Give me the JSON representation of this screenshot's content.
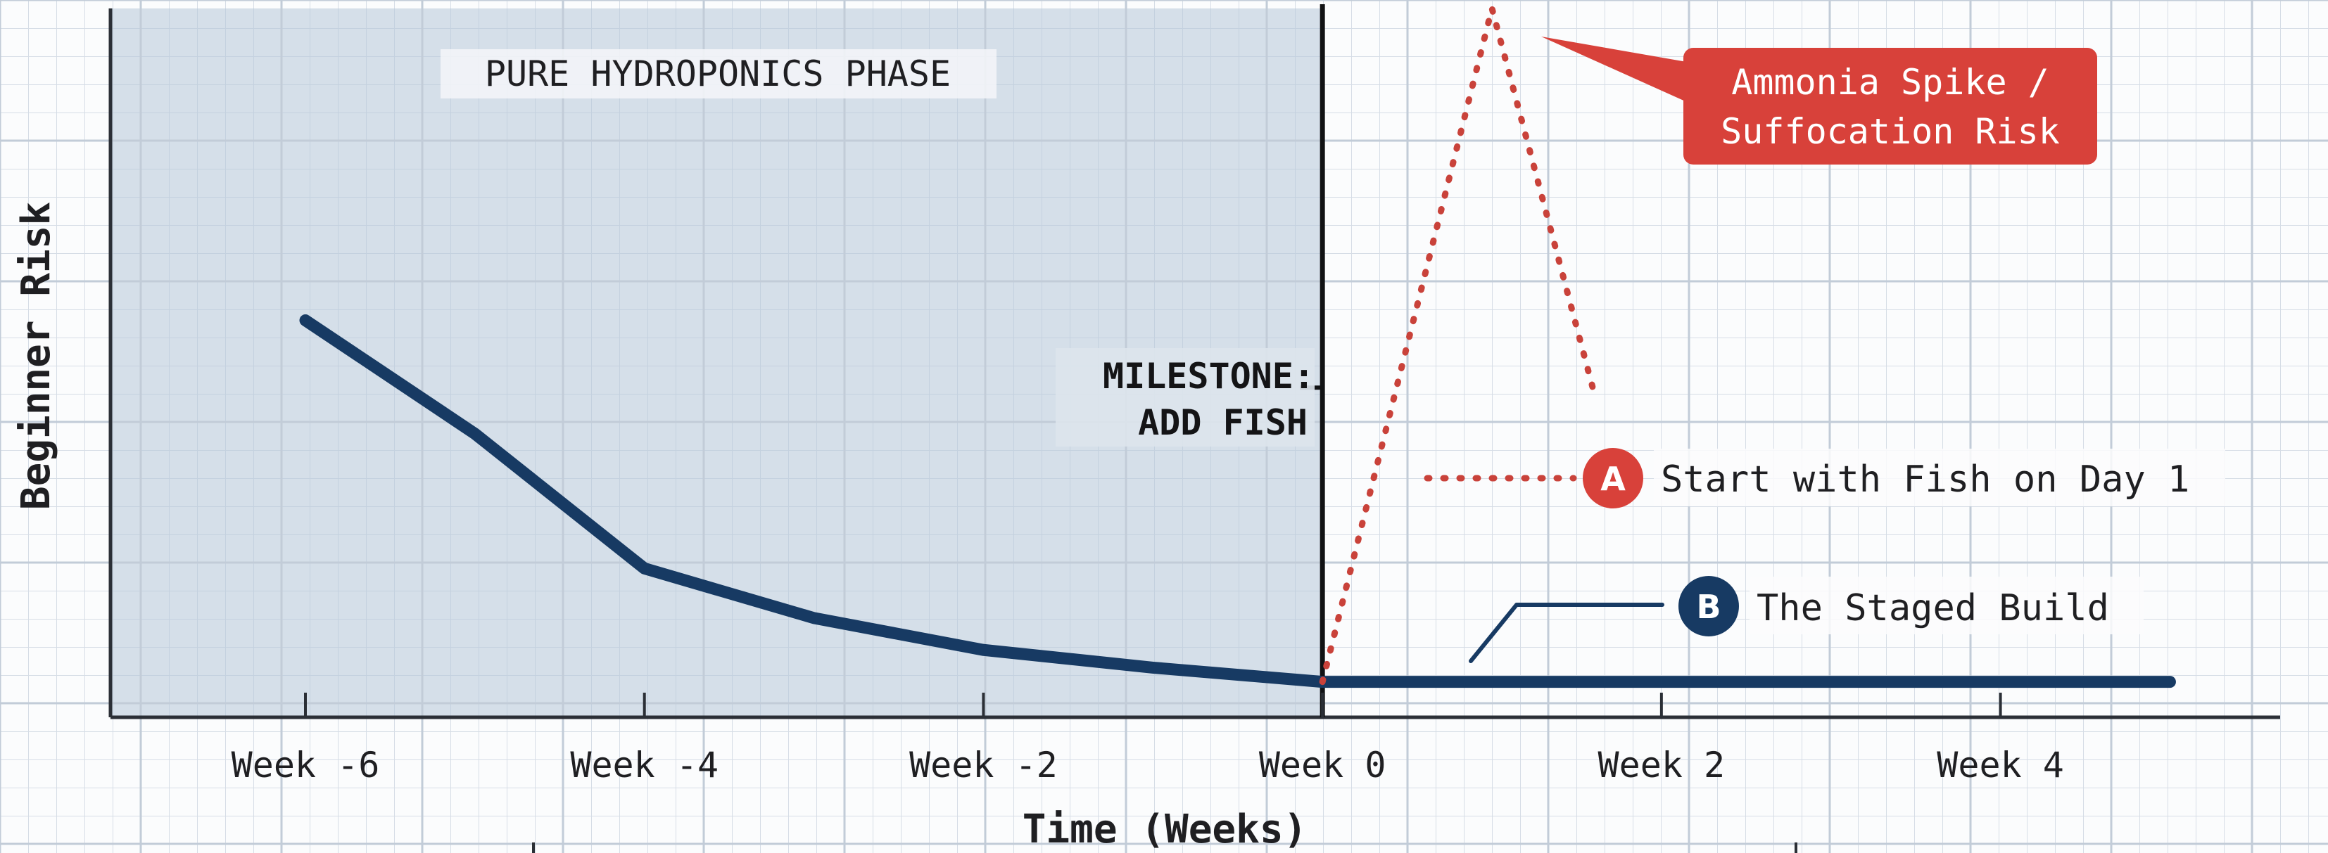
{
  "chart_data": {
    "type": "line",
    "title": "",
    "xlabel": "Time (Weeks)",
    "ylabel": "Beginner Risk",
    "xlim": [
      -7.15,
      5.65
    ],
    "ylim": [
      0,
      10
    ],
    "x_ticks": [
      {
        "value": -6,
        "label": "Week -6"
      },
      {
        "value": -4,
        "label": "Week -4"
      },
      {
        "value": -2,
        "label": "Week -2"
      },
      {
        "value": 0,
        "label": "Week 0"
      },
      {
        "value": 2,
        "label": "Week 2"
      },
      {
        "value": 4,
        "label": "Week 4"
      }
    ],
    "grid": true,
    "shaded_region": {
      "x_from": -7.15,
      "x_to": 0,
      "label": "PURE HYDROPONICS PHASE"
    },
    "milestone": {
      "x": 0,
      "y": 4.65,
      "label_lines": [
        "MILESTONE:",
        "ADD FISH"
      ]
    },
    "series": [
      {
        "key": "staged",
        "badge": "B",
        "name": "The Staged Build",
        "style": "solid",
        "color": "#173a63",
        "x": [
          -6,
          -5,
          -4,
          -3,
          -2,
          -1,
          0,
          1,
          2,
          3,
          4,
          5
        ],
        "y": [
          5.6,
          4.0,
          2.1,
          1.4,
          0.95,
          0.7,
          0.5,
          0.5,
          0.5,
          0.5,
          0.5,
          0.5
        ]
      },
      {
        "key": "fish-day-1",
        "badge": "A",
        "name": "Start with Fish on Day 1",
        "style": "dotted",
        "color": "#c9423a",
        "x": [
          0,
          1,
          1.6
        ],
        "y": [
          0.5,
          10.0,
          4.6
        ]
      }
    ],
    "annotations": [
      {
        "text_lines": [
          "Ammonia Spike /",
          "Suffocation Risk"
        ],
        "style": "callout",
        "color": "#d8413a",
        "points_to": {
          "x": 1,
          "y": 10.0
        }
      }
    ]
  }
}
